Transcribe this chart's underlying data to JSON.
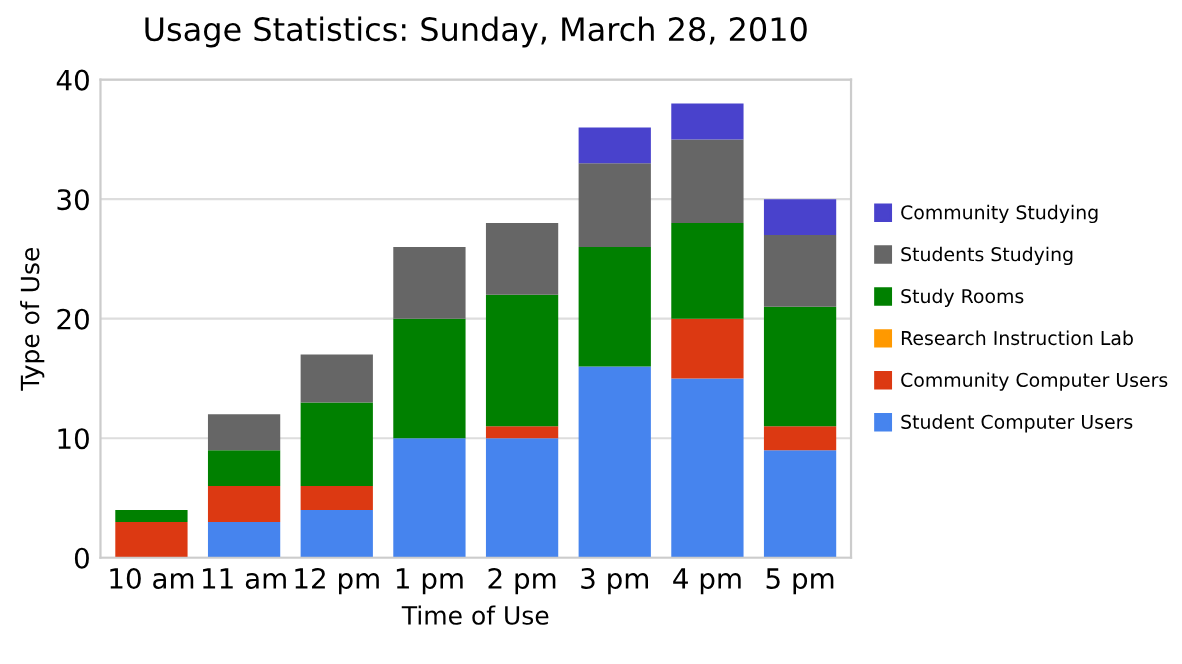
{
  "chart_data": {
    "type": "bar",
    "stacked": true,
    "title": "Usage Statistics: Sunday, March 28, 2010",
    "xlabel": "Time of Use",
    "ylabel": "Type of Use",
    "categories": [
      "10 am",
      "11 am",
      "12 pm",
      "1 pm",
      "2 pm",
      "3 pm",
      "4 pm",
      "5 pm"
    ],
    "series": [
      {
        "name": "Student Computer Users",
        "color": "#4684ee",
        "values": [
          0,
          3,
          4,
          10,
          10,
          16,
          15,
          9
        ]
      },
      {
        "name": "Community Computer Users",
        "color": "#dc3912",
        "values": [
          3,
          3,
          2,
          0,
          1,
          0,
          5,
          2
        ]
      },
      {
        "name": "Research Instruction Lab",
        "color": "#ff9900",
        "values": [
          0,
          0,
          0,
          0,
          0,
          0,
          0,
          0
        ]
      },
      {
        "name": "Study Rooms",
        "color": "#008000",
        "values": [
          1,
          3,
          7,
          10,
          11,
          10,
          8,
          10
        ]
      },
      {
        "name": "Students Studying",
        "color": "#666666",
        "values": [
          0,
          3,
          4,
          6,
          6,
          7,
          7,
          6
        ]
      },
      {
        "name": "Community Studying",
        "color": "#4942cc",
        "values": [
          0,
          0,
          0,
          0,
          0,
          3,
          3,
          3
        ]
      }
    ],
    "ylim": [
      0,
      40
    ],
    "yticks": [
      0,
      10,
      20,
      30,
      40
    ],
    "grid": "y",
    "legend": "right"
  }
}
